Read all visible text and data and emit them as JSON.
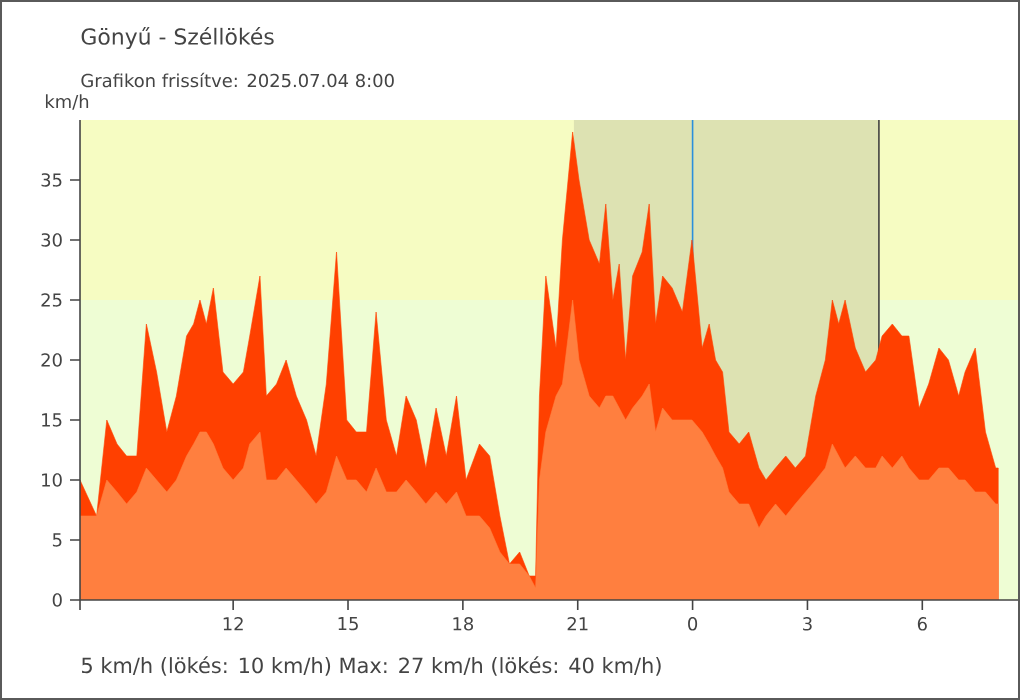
{
  "chart_data": {
    "type": "area",
    "title": "Gönyű - Széllökés",
    "subtitle": "Grafikon frissítve: 2025.07.04 8:00",
    "ylabel": "km/h",
    "annotations": [
      "5 km/h  (lökés: 10 km/h)  Max: 27 km/h (lökés: 40 km/h)"
    ],
    "x": [
      "2025-07-03T08:00",
      "2025-07-03T08:26",
      "2025-07-03T08:42",
      "2025-07-03T08:58",
      "2025-07-03T09:13",
      "2025-07-03T09:29",
      "2025-07-03T09:44",
      "2025-07-03T10:00",
      "2025-07-03T10:16",
      "2025-07-03T10:31",
      "2025-07-03T10:47",
      "2025-07-03T10:58",
      "2025-07-03T11:08",
      "2025-07-03T11:18",
      "2025-07-03T11:29",
      "2025-07-03T11:44",
      "2025-07-03T12:00",
      "2025-07-03T12:16",
      "2025-07-03T12:26",
      "2025-07-03T12:42",
      "2025-07-03T12:52",
      "2025-07-03T13:08",
      "2025-07-03T13:23",
      "2025-07-03T13:39",
      "2025-07-03T13:55",
      "2025-07-03T14:10",
      "2025-07-03T14:26",
      "2025-07-03T14:42",
      "2025-07-03T14:58",
      "2025-07-03T15:13",
      "2025-07-03T15:29",
      "2025-07-03T15:44",
      "2025-07-03T16:00",
      "2025-07-03T16:16",
      "2025-07-03T16:31",
      "2025-07-03T16:47",
      "2025-07-03T17:02",
      "2025-07-03T17:18",
      "2025-07-03T17:34",
      "2025-07-03T17:50",
      "2025-07-03T18:05",
      "2025-07-03T18:26",
      "2025-07-03T18:42",
      "2025-07-03T18:58",
      "2025-07-03T19:13",
      "2025-07-03T19:29",
      "2025-07-03T19:44",
      "2025-07-03T19:54",
      "2025-07-03T20:00",
      "2025-07-03T20:10",
      "2025-07-03T20:26",
      "2025-07-03T20:36",
      "2025-07-03T20:52",
      "2025-07-03T21:02",
      "2025-07-03T21:18",
      "2025-07-03T21:34",
      "2025-07-03T21:44",
      "2025-07-03T21:55",
      "2025-07-03T22:05",
      "2025-07-03T22:15",
      "2025-07-03T22:26",
      "2025-07-03T22:41",
      "2025-07-03T22:52",
      "2025-07-03T23:02",
      "2025-07-03T23:13",
      "2025-07-03T23:28",
      "2025-07-03T23:44",
      "2025-07-03T23:59",
      "2025-07-04T00:15",
      "2025-07-04T00:26",
      "2025-07-04T00:36",
      "2025-07-04T00:47",
      "2025-07-04T00:57",
      "2025-07-04T01:13",
      "2025-07-04T01:28",
      "2025-07-04T01:44",
      "2025-07-04T01:55",
      "2025-07-04T02:10",
      "2025-07-04T02:26",
      "2025-07-04T02:41",
      "2025-07-04T02:57",
      "2025-07-04T03:13",
      "2025-07-04T03:28",
      "2025-07-04T03:39",
      "2025-07-04T03:49",
      "2025-07-04T03:59",
      "2025-07-04T04:15",
      "2025-07-04T04:31",
      "2025-07-04T04:47",
      "2025-07-04T04:57",
      "2025-07-04T05:13",
      "2025-07-04T05:28",
      "2025-07-04T05:39",
      "2025-07-04T05:55",
      "2025-07-04T06:10",
      "2025-07-04T06:26",
      "2025-07-04T06:41",
      "2025-07-04T06:57",
      "2025-07-04T07:07",
      "2025-07-04T07:23",
      "2025-07-04T07:39",
      "2025-07-04T07:55",
      "2025-07-04T07:59"
    ],
    "series": [
      {
        "color": "#ff4000",
        "values": [
          10,
          7,
          15,
          13,
          12,
          12,
          23,
          19,
          14,
          17,
          22,
          23,
          25,
          23,
          26,
          19,
          18,
          19,
          22,
          27,
          17,
          18,
          20,
          17,
          15,
          12,
          18,
          29,
          15,
          14,
          14,
          24,
          15,
          12,
          17,
          15,
          11,
          16,
          12,
          17,
          10,
          13,
          12,
          7,
          3,
          4,
          2,
          2,
          17,
          27,
          21,
          30,
          39,
          35,
          30,
          28,
          33,
          25,
          28,
          20,
          27,
          29,
          33,
          23,
          27,
          26,
          24,
          30,
          21,
          23,
          20,
          19,
          14,
          13,
          14,
          11,
          10,
          11,
          12,
          11,
          12,
          17,
          20,
          25,
          23,
          25,
          21,
          19,
          20,
          22,
          23,
          22,
          22,
          16,
          18,
          21,
          20,
          17,
          19,
          21,
          14,
          11,
          11
        ]
      },
      {
        "color": "#ff7f3f",
        "values": [
          7,
          7,
          10,
          9,
          8,
          9,
          11,
          10,
          9,
          10,
          12,
          13,
          14,
          14,
          13,
          11,
          10,
          11,
          13,
          14,
          10,
          10,
          11,
          10,
          9,
          8,
          9,
          12,
          10,
          10,
          9,
          11,
          9,
          9,
          10,
          9,
          8,
          9,
          8,
          9,
          7,
          7,
          6,
          4,
          3,
          3,
          2,
          1,
          10,
          14,
          17,
          18,
          25,
          20,
          17,
          16,
          17,
          17,
          16,
          15,
          16,
          17,
          18,
          14,
          16,
          15,
          15,
          15,
          14,
          13,
          12,
          11,
          9,
          8,
          8,
          6,
          7,
          8,
          7,
          8,
          9,
          10,
          11,
          13,
          12,
          11,
          12,
          11,
          11,
          12,
          11,
          12,
          11,
          10,
          10,
          11,
          11,
          10,
          10,
          9,
          9,
          8,
          8
        ]
      }
    ],
    "xlim": [
      "2025-07-03T08:00",
      "2025-07-04T08:30"
    ],
    "xticks": [
      {
        "value": "2025-07-03T08:00",
        "label": null
      },
      {
        "value": "2025-07-03T12:00",
        "label": "12"
      },
      {
        "value": "2025-07-03T15:00",
        "label": "15"
      },
      {
        "value": "2025-07-03T18:00",
        "label": "18"
      },
      {
        "value": "2025-07-03T21:00",
        "label": "21"
      },
      {
        "value": "2025-07-04T00:00",
        "label": "0"
      },
      {
        "value": "2025-07-04T03:00",
        "label": "3"
      },
      {
        "value": "2025-07-04T06:00",
        "label": "6"
      }
    ],
    "ylim": [
      0,
      40
    ],
    "yticks": [
      0,
      5,
      10,
      15,
      20,
      25,
      30,
      35
    ],
    "bands": [
      {
        "axis": "y",
        "from": 25,
        "to": 40,
        "color": "#f6fcc2"
      },
      {
        "axis": "y",
        "from": 0,
        "to": 25,
        "color": "#eefdd4"
      },
      {
        "axis": "x",
        "from": "2025-07-03T20:54",
        "to": "2025-07-04T04:52",
        "color": "#dde2b2"
      }
    ],
    "ref_lines": [
      {
        "axis": "x",
        "value": "2025-07-04T00:00",
        "color": "#2a8fdc"
      },
      {
        "axis": "x",
        "value": "2025-07-04T04:52",
        "color": "#404040"
      }
    ],
    "grid": false,
    "legend": false
  }
}
